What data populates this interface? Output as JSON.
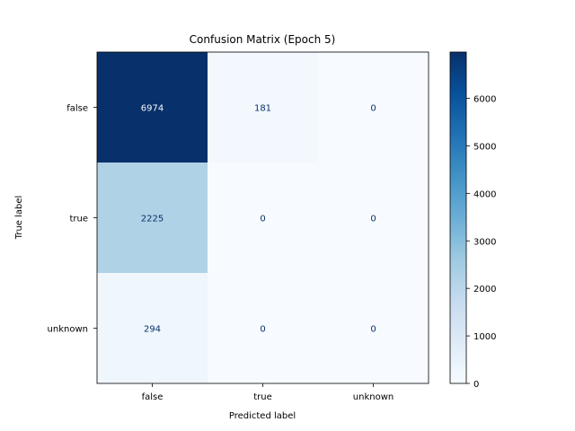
{
  "chart_data": {
    "type": "heatmap",
    "title": "Confusion Matrix (Epoch 5)",
    "xlabel": "Predicted label",
    "ylabel": "True label",
    "x_categories": [
      "false",
      "true",
      "unknown"
    ],
    "y_categories": [
      "false",
      "true",
      "unknown"
    ],
    "values": [
      [
        6974,
        181,
        0
      ],
      [
        2225,
        0,
        0
      ],
      [
        294,
        0,
        0
      ]
    ],
    "colormap": "Blues",
    "colorbar": {
      "range": [
        0,
        6974
      ],
      "ticks": [
        0,
        1000,
        2000,
        3000,
        4000,
        5000,
        6000
      ]
    },
    "colors": {
      "low": "#f7fbff",
      "high": "#08306b",
      "text_on_dark": "#f7fbff",
      "text_on_light": "#08306b"
    }
  }
}
